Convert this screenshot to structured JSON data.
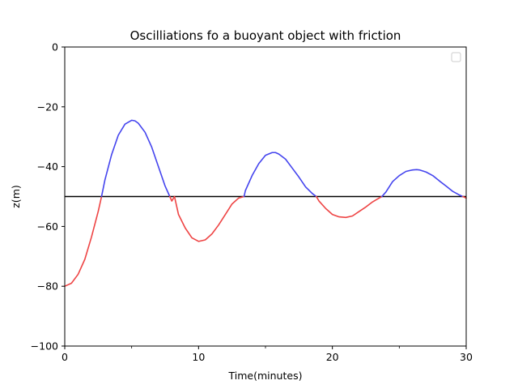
{
  "chart_data": {
    "type": "line",
    "title": "Oscilliations fo a buoyant object with friction",
    "xlabel": "Time(minutes)",
    "ylabel": "z(m)",
    "xlim": [
      0,
      30
    ],
    "ylim": [
      -100,
      0
    ],
    "x_ticks": [
      0,
      10,
      20,
      30
    ],
    "x_minor_ticks": [
      5,
      15,
      25
    ],
    "y_ticks": [
      0,
      -20,
      -40,
      -60,
      -80,
      -100
    ],
    "grid": false,
    "legend": "top-right",
    "legend_entries": [],
    "equilibrium": -50,
    "colors": {
      "below_equilibrium": "#ee4444",
      "above_equilibrium": "#4444ee",
      "equilibrium_line": "#000000"
    },
    "series": [
      {
        "x": [
          0,
          0.5,
          1,
          1.5,
          2,
          2.5,
          2.75,
          3,
          3.5,
          4,
          4.5,
          5,
          5.25,
          5.5,
          6,
          6.5,
          7,
          7.5,
          8,
          8.2,
          8.5,
          9,
          9.5,
          10,
          10.5,
          11,
          11.5,
          12,
          12.5,
          13,
          13.4,
          13.5,
          14,
          14.5,
          15,
          15.5,
          15.75,
          16,
          16.5,
          17,
          17.5,
          18,
          18.5,
          18.8,
          19,
          19.5,
          20,
          20.5,
          21,
          21.5,
          22,
          22.5,
          23,
          23.5,
          23.7,
          24,
          24.5,
          25,
          25.5,
          26,
          26.3,
          26.5,
          27,
          27.5,
          28,
          28.5,
          29,
          29.5,
          30
        ],
        "y": [
          -80,
          -79,
          -76,
          -71,
          -63.5,
          -55,
          -50,
          -44.5,
          -36,
          -29.5,
          -25.8,
          -24.5,
          -24.7,
          -25.5,
          -28.5,
          -33.5,
          -40,
          -46.5,
          -51.5,
          -50,
          -56,
          -60.5,
          -63.8,
          -65,
          -64.5,
          -62.5,
          -59.5,
          -56,
          -52.5,
          -50.5,
          -50,
          -48,
          -43,
          -39,
          -36.2,
          -35.3,
          -35.3,
          -35.8,
          -37.5,
          -40.5,
          -43.5,
          -46.8,
          -49,
          -50,
          -51.5,
          -54,
          -56,
          -56.8,
          -57,
          -56.5,
          -55,
          -53.5,
          -51.8,
          -50.5,
          -50,
          -48.5,
          -45,
          -43,
          -41.6,
          -41.1,
          -41,
          -41.1,
          -41.8,
          -43,
          -44.8,
          -46.5,
          -48.3,
          -49.5,
          -50.5
        ]
      }
    ]
  }
}
